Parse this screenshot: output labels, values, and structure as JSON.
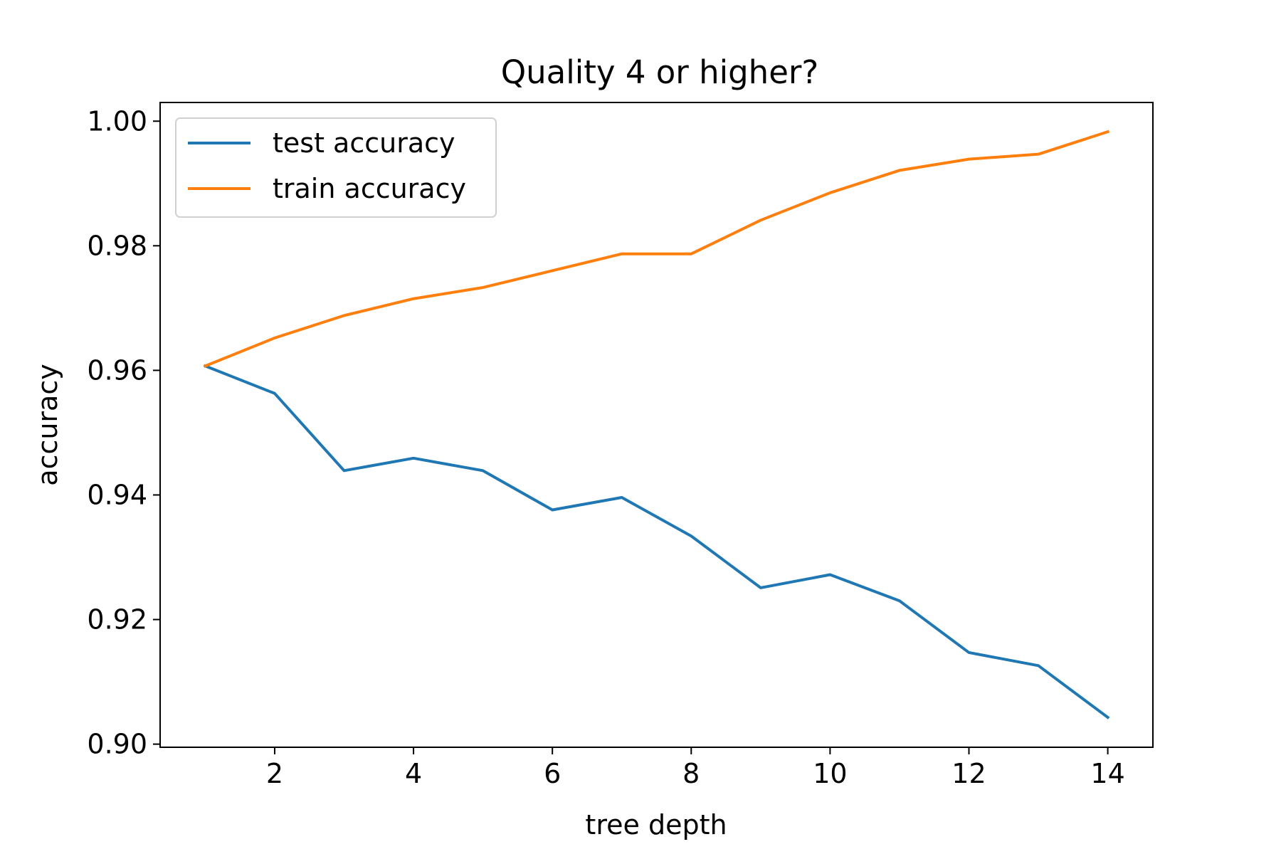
{
  "chart_data": {
    "type": "line",
    "title": "Quality 4 or higher?",
    "xlabel": "tree depth",
    "ylabel": "accuracy",
    "xlim": [
      0.35,
      14.65
    ],
    "ylim": [
      0.8995,
      1.003
    ],
    "xticks": [
      2,
      4,
      6,
      8,
      10,
      12,
      14
    ],
    "xtick_labels": [
      "2",
      "4",
      "6",
      "8",
      "10",
      "12",
      "14"
    ],
    "yticks": [
      0.9,
      0.92,
      0.94,
      0.96,
      0.98,
      1.0
    ],
    "ytick_labels": [
      "0.90",
      "0.92",
      "0.94",
      "0.96",
      "0.98",
      "1.00"
    ],
    "grid": false,
    "legend_position": "upper-left",
    "x": [
      1,
      2,
      3,
      4,
      5,
      6,
      7,
      8,
      9,
      10,
      11,
      12,
      13,
      14
    ],
    "series": [
      {
        "name": "test accuracy",
        "color": "#1f77b4",
        "values": [
          0.9607,
          0.9563,
          0.9439,
          0.9459,
          0.9439,
          0.9376,
          0.9396,
          0.9334,
          0.9251,
          0.9272,
          0.923,
          0.9147,
          0.9126,
          0.9043
        ]
      },
      {
        "name": "train accuracy",
        "color": "#ff7f0e",
        "values": [
          0.9607,
          0.9652,
          0.9688,
          0.9715,
          0.9733,
          0.976,
          0.9787,
          0.9787,
          0.9841,
          0.9885,
          0.9921,
          0.9939,
          0.9947,
          0.9983
        ]
      }
    ]
  }
}
